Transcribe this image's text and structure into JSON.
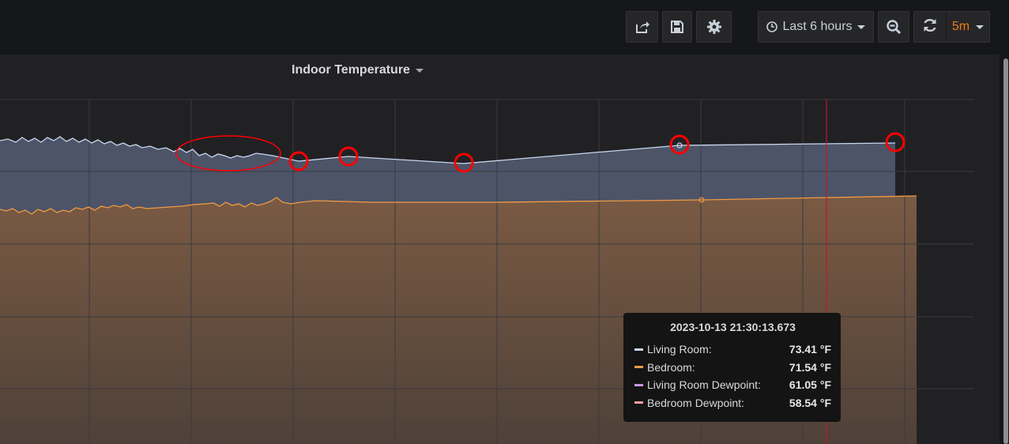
{
  "toolbar": {
    "share_icon": "share-icon",
    "save_icon": "save-icon",
    "settings_icon": "gear-icon",
    "time_range_label": "Last 6 hours",
    "zoom_icon": "zoom-out-icon",
    "refresh_icon": "refresh-icon",
    "refresh_interval": "5m"
  },
  "panel": {
    "title": "Indoor Temperature"
  },
  "colors": {
    "living_room": "#c8d8f0",
    "bedroom": "#ef9a45",
    "living_room_dewpoint": "#ca95e5",
    "bedroom_dewpoint": "#ff9fa0",
    "annotation_circle": "#ff0000",
    "cursor_line": "#c4162a",
    "refresh_interval": "#eb7b18"
  },
  "tooltip": {
    "time": "2023-10-13 21:30:13.673",
    "rows": [
      {
        "label": "Living Room:",
        "value": "73.41 °F",
        "color": "#c8d8f0"
      },
      {
        "label": "Bedroom:",
        "value": "71.54 °F",
        "color": "#ef9a45"
      },
      {
        "label": "Living Room Dewpoint:",
        "value": "61.05 °F",
        "color": "#ca95e5"
      },
      {
        "label": "Bedroom Dewpoint:",
        "value": "58.54 °F",
        "color": "#ff9fa0"
      }
    ]
  }
}
